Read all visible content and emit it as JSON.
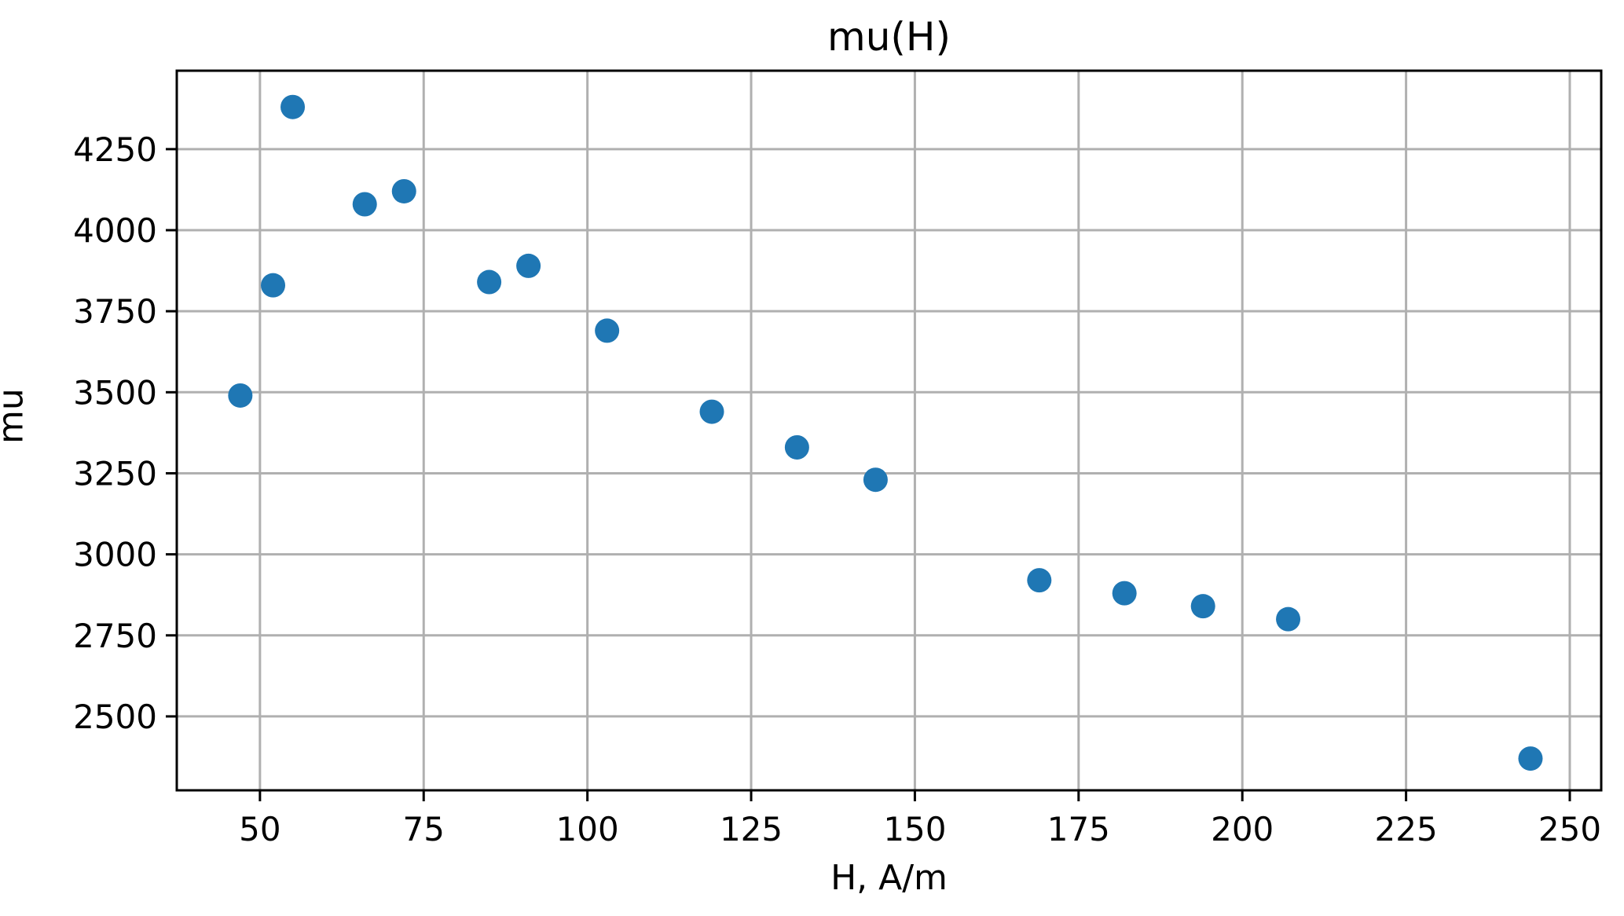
{
  "chart_data": {
    "type": "scatter",
    "title": "mu(H)",
    "xlabel": "H, A/m",
    "ylabel": "mu",
    "x": [
      47,
      52,
      55,
      66,
      72,
      85,
      91,
      103,
      119,
      132,
      144,
      169,
      182,
      194,
      207,
      244
    ],
    "y": [
      3490,
      3830,
      4380,
      4080,
      4120,
      3840,
      3890,
      3690,
      3440,
      3330,
      3230,
      2920,
      2880,
      2840,
      2800,
      2370
    ],
    "xlim": [
      37.3,
      254.8
    ],
    "ylim": [
      2272,
      4492
    ],
    "xticks": [
      50,
      75,
      100,
      125,
      150,
      175,
      200,
      225,
      250
    ],
    "yticks": [
      2500,
      2750,
      3000,
      3250,
      3500,
      3750,
      4000,
      4250
    ],
    "grid": true,
    "legend_position": "none",
    "marker_color": "#1f77b4",
    "grid_color": "#b0b0b0",
    "spine_color": "#000000",
    "background_color": "#ffffff"
  }
}
